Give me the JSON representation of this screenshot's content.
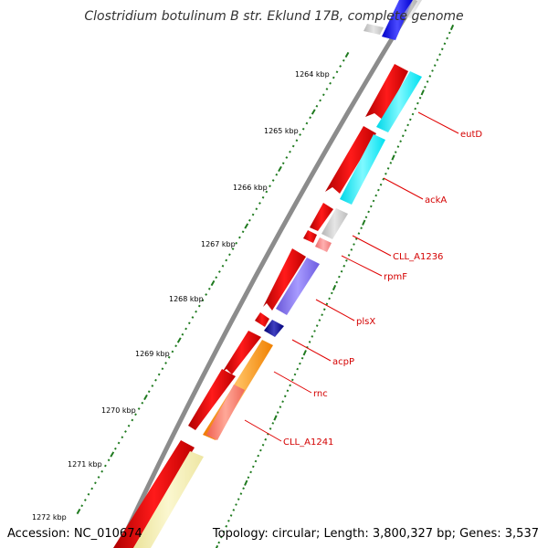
{
  "title": "Clostridium botulinum B str. Eklund 17B, complete genome",
  "footer": {
    "accession": "Accession: NC_010674",
    "summary": "Topology: circular; Length: 3,800,327 bp; Genes: 3,537"
  },
  "colors": {
    "backbone": "#8c8c8c",
    "tick": "#1f7a1f",
    "forward_gene": "#ee0000",
    "label_text": "#d40000",
    "leader_line": "#e00000"
  },
  "kbp_markers": [
    {
      "label": "1264 kbp",
      "kbp": 1264
    },
    {
      "label": "1265 kbp",
      "kbp": 1265
    },
    {
      "label": "1266 kbp",
      "kbp": 1266
    },
    {
      "label": "1267 kbp",
      "kbp": 1267
    },
    {
      "label": "1268 kbp",
      "kbp": 1268
    },
    {
      "label": "1269 kbp",
      "kbp": 1269
    },
    {
      "label": "1270 kbp",
      "kbp": 1270
    },
    {
      "label": "1271 kbp",
      "kbp": 1271
    },
    {
      "label": "1272 kbp",
      "kbp": 1272
    }
  ],
  "labeled_genes": [
    {
      "name": "eutD",
      "color": "#00ffff"
    },
    {
      "name": "ackA",
      "color": "#00ffff"
    },
    {
      "name": "CLL_A1236",
      "color": "#c0c0c0"
    },
    {
      "name": "rpmF",
      "color": "#f08080"
    },
    {
      "name": "plsX",
      "color": "#7b68ee"
    },
    {
      "name": "acpP",
      "color": "#000080"
    },
    {
      "name": "rnc",
      "color": "#ff8c00"
    },
    {
      "name": "CLL_A1241",
      "color": "#fa8072"
    }
  ]
}
